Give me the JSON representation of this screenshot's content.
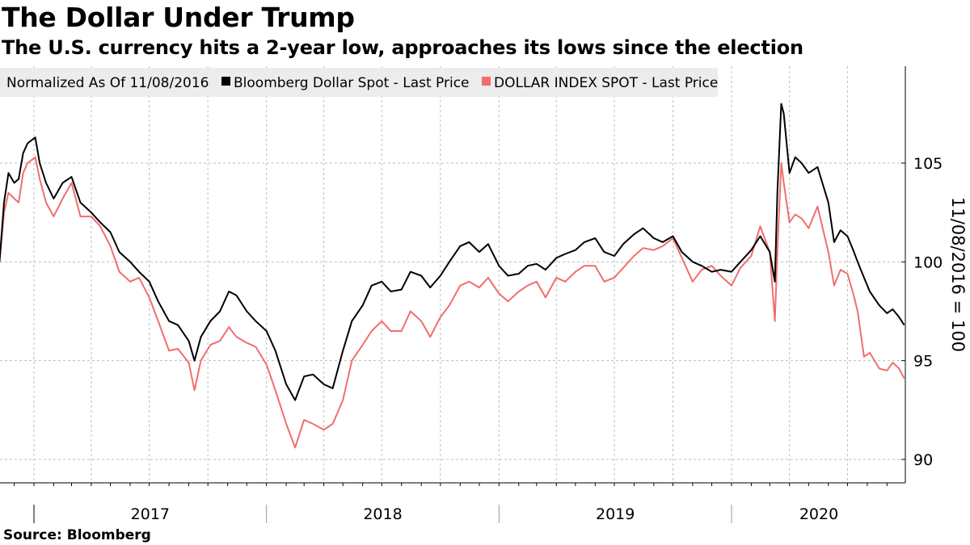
{
  "title": "The Dollar Under Trump",
  "subtitle": "The U.S. currency hits a 2-year low, approaches its lows since the election",
  "source": "Source: Bloomberg",
  "chart_data": {
    "type": "line",
    "legend_note": "Normalized As Of 11/08/2016",
    "ylabel": "11/08/2016 = 100",
    "y_ticks": [
      90,
      95,
      100,
      105
    ],
    "ylim": [
      89,
      110
    ],
    "x_range": [
      "2016-11-08",
      "2020-07-27"
    ],
    "x_tick_labels": [
      "2017",
      "2018",
      "2019",
      "2020"
    ],
    "grid": true,
    "legend_position": "top-left",
    "series": [
      {
        "name": "Bloomberg Dollar Spot - Last Price",
        "color": "#000000",
        "points": [
          [
            "2016-11-08",
            100.0
          ],
          [
            "2016-11-15",
            103.0
          ],
          [
            "2016-11-22",
            104.5
          ],
          [
            "2016-12-01",
            104.0
          ],
          [
            "2016-12-08",
            104.2
          ],
          [
            "2016-12-15",
            105.5
          ],
          [
            "2016-12-22",
            106.0
          ],
          [
            "2017-01-03",
            106.3
          ],
          [
            "2017-01-10",
            105.0
          ],
          [
            "2017-01-20",
            104.0
          ],
          [
            "2017-02-01",
            103.2
          ],
          [
            "2017-02-15",
            104.0
          ],
          [
            "2017-03-01",
            104.3
          ],
          [
            "2017-03-15",
            103.0
          ],
          [
            "2017-04-01",
            102.5
          ],
          [
            "2017-04-15",
            102.0
          ],
          [
            "2017-05-01",
            101.5
          ],
          [
            "2017-05-15",
            100.5
          ],
          [
            "2017-06-01",
            100.0
          ],
          [
            "2017-06-15",
            99.5
          ],
          [
            "2017-07-01",
            99.0
          ],
          [
            "2017-07-15",
            98.0
          ],
          [
            "2017-08-01",
            97.0
          ],
          [
            "2017-08-15",
            96.8
          ],
          [
            "2017-09-01",
            96.0
          ],
          [
            "2017-09-10",
            95.0
          ],
          [
            "2017-09-20",
            96.2
          ],
          [
            "2017-10-05",
            97.0
          ],
          [
            "2017-10-20",
            97.5
          ],
          [
            "2017-11-03",
            98.5
          ],
          [
            "2017-11-15",
            98.3
          ],
          [
            "2017-12-01",
            97.5
          ],
          [
            "2017-12-15",
            97.0
          ],
          [
            "2018-01-01",
            96.5
          ],
          [
            "2018-01-15",
            95.5
          ],
          [
            "2018-02-01",
            93.8
          ],
          [
            "2018-02-15",
            93.0
          ],
          [
            "2018-03-01",
            94.2
          ],
          [
            "2018-03-15",
            94.3
          ],
          [
            "2018-04-01",
            93.8
          ],
          [
            "2018-04-15",
            93.6
          ],
          [
            "2018-05-01",
            95.5
          ],
          [
            "2018-05-15",
            97.0
          ],
          [
            "2018-06-01",
            97.8
          ],
          [
            "2018-06-15",
            98.8
          ],
          [
            "2018-07-01",
            99.0
          ],
          [
            "2018-07-15",
            98.5
          ],
          [
            "2018-08-01",
            98.6
          ],
          [
            "2018-08-15",
            99.5
          ],
          [
            "2018-09-01",
            99.3
          ],
          [
            "2018-09-15",
            98.7
          ],
          [
            "2018-10-01",
            99.3
          ],
          [
            "2018-10-15",
            100.0
          ],
          [
            "2018-11-01",
            100.8
          ],
          [
            "2018-11-15",
            101.0
          ],
          [
            "2018-12-01",
            100.5
          ],
          [
            "2018-12-15",
            100.9
          ],
          [
            "2019-01-01",
            99.8
          ],
          [
            "2019-01-15",
            99.3
          ],
          [
            "2019-02-01",
            99.4
          ],
          [
            "2019-02-15",
            99.8
          ],
          [
            "2019-03-01",
            99.9
          ],
          [
            "2019-03-15",
            99.6
          ],
          [
            "2019-04-01",
            100.2
          ],
          [
            "2019-04-15",
            100.4
          ],
          [
            "2019-05-01",
            100.6
          ],
          [
            "2019-05-15",
            101.0
          ],
          [
            "2019-06-01",
            101.2
          ],
          [
            "2019-06-15",
            100.5
          ],
          [
            "2019-07-01",
            100.3
          ],
          [
            "2019-07-15",
            100.9
          ],
          [
            "2019-08-01",
            101.4
          ],
          [
            "2019-08-15",
            101.7
          ],
          [
            "2019-09-01",
            101.2
          ],
          [
            "2019-09-15",
            101.0
          ],
          [
            "2019-10-01",
            101.3
          ],
          [
            "2019-10-15",
            100.5
          ],
          [
            "2019-11-01",
            100.0
          ],
          [
            "2019-11-15",
            99.8
          ],
          [
            "2019-12-01",
            99.5
          ],
          [
            "2019-12-15",
            99.6
          ],
          [
            "2020-01-01",
            99.5
          ],
          [
            "2020-01-15",
            100.0
          ],
          [
            "2020-02-01",
            100.6
          ],
          [
            "2020-02-15",
            101.3
          ],
          [
            "2020-03-01",
            100.5
          ],
          [
            "2020-03-09",
            99.0
          ],
          [
            "2020-03-13",
            103.5
          ],
          [
            "2020-03-19",
            108.0
          ],
          [
            "2020-03-23",
            107.5
          ],
          [
            "2020-04-01",
            104.5
          ],
          [
            "2020-04-10",
            105.3
          ],
          [
            "2020-04-20",
            105.0
          ],
          [
            "2020-05-01",
            104.5
          ],
          [
            "2020-05-15",
            104.8
          ],
          [
            "2020-06-01",
            103.0
          ],
          [
            "2020-06-10",
            101.0
          ],
          [
            "2020-06-20",
            101.6
          ],
          [
            "2020-07-01",
            101.3
          ],
          [
            "2020-07-10",
            100.6
          ],
          [
            "2020-07-17",
            100.0
          ],
          [
            "2020-07-27",
            99.2
          ],
          [
            "2020-08-05",
            98.5
          ],
          [
            "2020-08-20",
            97.8
          ],
          [
            "2020-09-01",
            97.4
          ],
          [
            "2020-09-10",
            97.6
          ],
          [
            "2020-09-20",
            97.2
          ],
          [
            "2020-09-28",
            96.8
          ]
        ]
      },
      {
        "name": "DOLLAR INDEX SPOT - Last Price",
        "color": "#f06e6e",
        "points": [
          [
            "2016-11-08",
            100.0
          ],
          [
            "2016-11-15",
            102.5
          ],
          [
            "2016-11-22",
            103.5
          ],
          [
            "2016-12-01",
            103.2
          ],
          [
            "2016-12-08",
            103.0
          ],
          [
            "2016-12-15",
            104.5
          ],
          [
            "2016-12-22",
            105.0
          ],
          [
            "2017-01-03",
            105.3
          ],
          [
            "2017-01-10",
            104.2
          ],
          [
            "2017-01-20",
            103.0
          ],
          [
            "2017-02-01",
            102.3
          ],
          [
            "2017-02-15",
            103.2
          ],
          [
            "2017-03-01",
            104.0
          ],
          [
            "2017-03-15",
            102.3
          ],
          [
            "2017-04-01",
            102.3
          ],
          [
            "2017-04-15",
            101.8
          ],
          [
            "2017-05-01",
            100.8
          ],
          [
            "2017-05-15",
            99.5
          ],
          [
            "2017-06-01",
            99.0
          ],
          [
            "2017-06-15",
            99.2
          ],
          [
            "2017-07-01",
            98.2
          ],
          [
            "2017-07-15",
            97.0
          ],
          [
            "2017-08-01",
            95.5
          ],
          [
            "2017-08-15",
            95.6
          ],
          [
            "2017-09-01",
            94.9
          ],
          [
            "2017-09-10",
            93.5
          ],
          [
            "2017-09-20",
            95.0
          ],
          [
            "2017-10-05",
            95.8
          ],
          [
            "2017-10-20",
            96.0
          ],
          [
            "2017-11-03",
            96.7
          ],
          [
            "2017-11-15",
            96.2
          ],
          [
            "2017-12-01",
            95.9
          ],
          [
            "2017-12-15",
            95.7
          ],
          [
            "2018-01-01",
            94.8
          ],
          [
            "2018-01-15",
            93.5
          ],
          [
            "2018-02-01",
            91.8
          ],
          [
            "2018-02-15",
            90.6
          ],
          [
            "2018-03-01",
            92.0
          ],
          [
            "2018-03-15",
            91.8
          ],
          [
            "2018-04-01",
            91.5
          ],
          [
            "2018-04-15",
            91.8
          ],
          [
            "2018-05-01",
            93.0
          ],
          [
            "2018-05-15",
            95.0
          ],
          [
            "2018-06-01",
            95.8
          ],
          [
            "2018-06-15",
            96.5
          ],
          [
            "2018-07-01",
            97.0
          ],
          [
            "2018-07-15",
            96.5
          ],
          [
            "2018-08-01",
            96.5
          ],
          [
            "2018-08-15",
            97.5
          ],
          [
            "2018-09-01",
            97.0
          ],
          [
            "2018-09-15",
            96.2
          ],
          [
            "2018-10-01",
            97.2
          ],
          [
            "2018-10-15",
            97.8
          ],
          [
            "2018-11-01",
            98.8
          ],
          [
            "2018-11-15",
            99.0
          ],
          [
            "2018-12-01",
            98.7
          ],
          [
            "2018-12-15",
            99.2
          ],
          [
            "2019-01-01",
            98.4
          ],
          [
            "2019-01-15",
            98.0
          ],
          [
            "2019-02-01",
            98.5
          ],
          [
            "2019-02-15",
            98.8
          ],
          [
            "2019-03-01",
            99.0
          ],
          [
            "2019-03-15",
            98.2
          ],
          [
            "2019-04-01",
            99.2
          ],
          [
            "2019-04-15",
            99.0
          ],
          [
            "2019-05-01",
            99.5
          ],
          [
            "2019-05-15",
            99.8
          ],
          [
            "2019-06-01",
            99.8
          ],
          [
            "2019-06-15",
            99.0
          ],
          [
            "2019-07-01",
            99.2
          ],
          [
            "2019-07-15",
            99.7
          ],
          [
            "2019-08-01",
            100.3
          ],
          [
            "2019-08-15",
            100.7
          ],
          [
            "2019-09-01",
            100.6
          ],
          [
            "2019-09-15",
            100.8
          ],
          [
            "2019-10-01",
            101.2
          ],
          [
            "2019-10-15",
            100.2
          ],
          [
            "2019-11-01",
            99.0
          ],
          [
            "2019-11-15",
            99.6
          ],
          [
            "2019-12-01",
            99.8
          ],
          [
            "2019-12-15",
            99.3
          ],
          [
            "2020-01-01",
            98.8
          ],
          [
            "2020-01-15",
            99.7
          ],
          [
            "2020-02-01",
            100.3
          ],
          [
            "2020-02-15",
            101.8
          ],
          [
            "2020-03-01",
            100.5
          ],
          [
            "2020-03-09",
            97.0
          ],
          [
            "2020-03-13",
            100.5
          ],
          [
            "2020-03-19",
            105.0
          ],
          [
            "2020-03-23",
            104.0
          ],
          [
            "2020-04-01",
            102.0
          ],
          [
            "2020-04-10",
            102.4
          ],
          [
            "2020-04-20",
            102.2
          ],
          [
            "2020-05-01",
            101.7
          ],
          [
            "2020-05-15",
            102.8
          ],
          [
            "2020-06-01",
            100.5
          ],
          [
            "2020-06-10",
            98.8
          ],
          [
            "2020-06-20",
            99.6
          ],
          [
            "2020-07-01",
            99.4
          ],
          [
            "2020-07-10",
            98.4
          ],
          [
            "2020-07-17",
            97.5
          ],
          [
            "2020-07-27",
            95.2
          ],
          [
            "2020-08-05",
            95.4
          ],
          [
            "2020-08-20",
            94.6
          ],
          [
            "2020-09-01",
            94.5
          ],
          [
            "2020-09-10",
            94.9
          ],
          [
            "2020-09-20",
            94.6
          ],
          [
            "2020-09-28",
            94.1
          ]
        ]
      }
    ]
  }
}
